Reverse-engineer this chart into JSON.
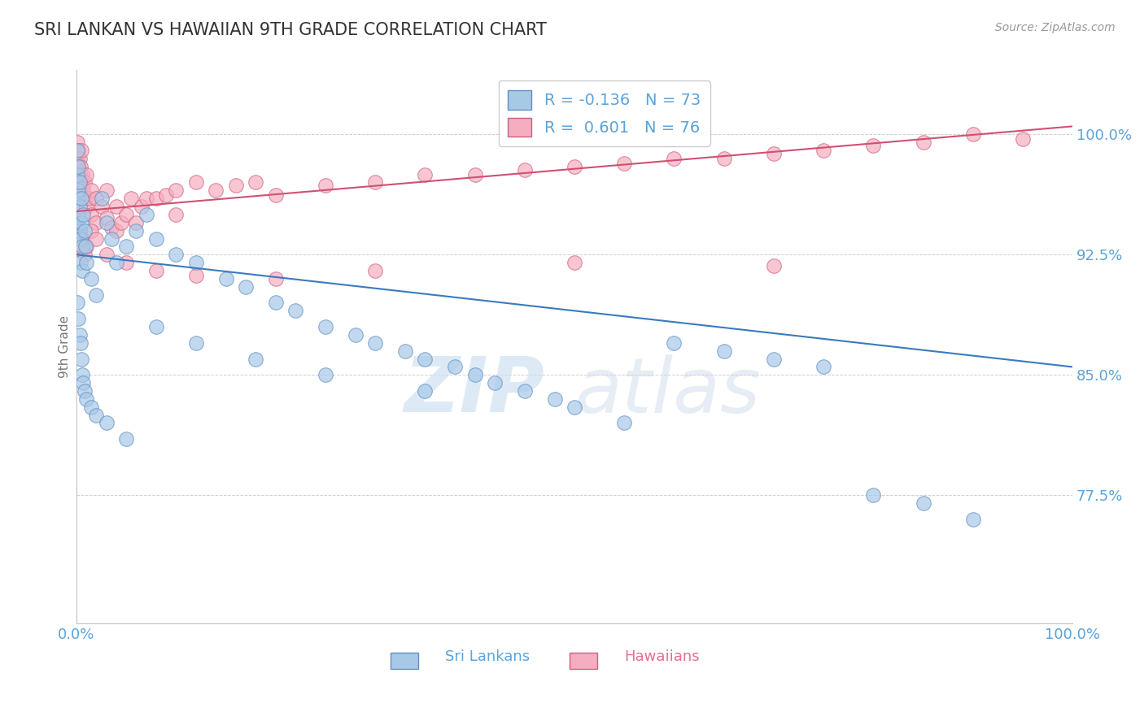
{
  "title": "SRI LANKAN VS HAWAIIAN 9TH GRADE CORRELATION CHART",
  "source": "Source: ZipAtlas.com",
  "ylabel": "9th Grade",
  "y_tick_labels": [
    "77.5%",
    "85.0%",
    "92.5%",
    "100.0%"
  ],
  "y_tick_values": [
    0.775,
    0.85,
    0.925,
    1.0
  ],
  "x_range": [
    0.0,
    1.0
  ],
  "y_range": [
    0.695,
    1.04
  ],
  "legend_label_blue": "R = -0.136   N = 73",
  "legend_label_pink": "R =  0.601   N = 76",
  "legend_text_color": "#5ba3d9",
  "sri_lankan_color": "#a8c8e8",
  "hawaiian_color": "#f4aec0",
  "sri_lankan_edge": "#6090c0",
  "hawaiian_edge": "#d06080",
  "trend_blue": "#3a7abf",
  "trend_pink": "#d05070",
  "blue_trend_x": [
    0.0,
    1.0
  ],
  "blue_trend_y": [
    0.925,
    0.855
  ],
  "pink_trend_x": [
    0.0,
    1.0
  ],
  "pink_trend_y": [
    0.952,
    1.005
  ],
  "watermark_zip": "ZIP",
  "watermark_atlas": "atlas",
  "title_color": "#333333",
  "tick_color": "#5ba3d9",
  "grid_color": "#d0d0d0",
  "sri_lankans_x": [
    0.001,
    0.001,
    0.001,
    0.001,
    0.002,
    0.002,
    0.002,
    0.003,
    0.003,
    0.003,
    0.004,
    0.004,
    0.005,
    0.005,
    0.006,
    0.006,
    0.007,
    0.008,
    0.009,
    0.01,
    0.015,
    0.02,
    0.025,
    0.03,
    0.035,
    0.04,
    0.05,
    0.06,
    0.07,
    0.08,
    0.1,
    0.12,
    0.15,
    0.17,
    0.2,
    0.22,
    0.25,
    0.28,
    0.3,
    0.33,
    0.35,
    0.38,
    0.4,
    0.42,
    0.45,
    0.48,
    0.5,
    0.55,
    0.6,
    0.65,
    0.7,
    0.75,
    0.8,
    0.85,
    0.9,
    0.001,
    0.002,
    0.003,
    0.004,
    0.005,
    0.006,
    0.007,
    0.008,
    0.01,
    0.015,
    0.02,
    0.03,
    0.05,
    0.08,
    0.12,
    0.18,
    0.25,
    0.35
  ],
  "sri_lankans_y": [
    0.99,
    0.975,
    0.96,
    0.945,
    0.98,
    0.965,
    0.95,
    0.97,
    0.955,
    0.94,
    0.935,
    0.92,
    0.96,
    0.945,
    0.93,
    0.915,
    0.95,
    0.94,
    0.93,
    0.92,
    0.91,
    0.9,
    0.96,
    0.945,
    0.935,
    0.92,
    0.93,
    0.94,
    0.95,
    0.935,
    0.925,
    0.92,
    0.91,
    0.905,
    0.895,
    0.89,
    0.88,
    0.875,
    0.87,
    0.865,
    0.86,
    0.855,
    0.85,
    0.845,
    0.84,
    0.835,
    0.83,
    0.82,
    0.87,
    0.865,
    0.86,
    0.855,
    0.775,
    0.77,
    0.76,
    0.895,
    0.885,
    0.875,
    0.87,
    0.86,
    0.85,
    0.845,
    0.84,
    0.835,
    0.83,
    0.825,
    0.82,
    0.81,
    0.88,
    0.87,
    0.86,
    0.85,
    0.84
  ],
  "hawaiians_x": [
    0.001,
    0.001,
    0.001,
    0.002,
    0.002,
    0.002,
    0.003,
    0.003,
    0.004,
    0.004,
    0.005,
    0.005,
    0.006,
    0.006,
    0.007,
    0.008,
    0.009,
    0.01,
    0.01,
    0.012,
    0.015,
    0.015,
    0.02,
    0.02,
    0.025,
    0.03,
    0.03,
    0.035,
    0.04,
    0.04,
    0.045,
    0.05,
    0.055,
    0.06,
    0.065,
    0.07,
    0.08,
    0.09,
    0.1,
    0.1,
    0.12,
    0.14,
    0.16,
    0.18,
    0.2,
    0.25,
    0.3,
    0.35,
    0.4,
    0.45,
    0.5,
    0.55,
    0.6,
    0.65,
    0.7,
    0.75,
    0.8,
    0.85,
    0.9,
    0.95,
    0.001,
    0.002,
    0.003,
    0.005,
    0.008,
    0.01,
    0.015,
    0.02,
    0.03,
    0.05,
    0.08,
    0.12,
    0.2,
    0.3,
    0.5,
    0.7
  ],
  "hawaiians_y": [
    0.995,
    0.985,
    0.975,
    0.99,
    0.98,
    0.97,
    0.985,
    0.975,
    0.98,
    0.965,
    0.99,
    0.97,
    0.975,
    0.96,
    0.965,
    0.97,
    0.96,
    0.975,
    0.955,
    0.96,
    0.965,
    0.95,
    0.96,
    0.945,
    0.955,
    0.965,
    0.948,
    0.942,
    0.955,
    0.94,
    0.945,
    0.95,
    0.96,
    0.945,
    0.955,
    0.96,
    0.96,
    0.962,
    0.965,
    0.95,
    0.97,
    0.965,
    0.968,
    0.97,
    0.962,
    0.968,
    0.97,
    0.975,
    0.975,
    0.978,
    0.98,
    0.982,
    0.985,
    0.985,
    0.988,
    0.99,
    0.993,
    0.995,
    1.0,
    0.997,
    0.94,
    0.93,
    0.94,
    0.935,
    0.925,
    0.93,
    0.94,
    0.935,
    0.925,
    0.92,
    0.915,
    0.912,
    0.91,
    0.915,
    0.92,
    0.918
  ]
}
